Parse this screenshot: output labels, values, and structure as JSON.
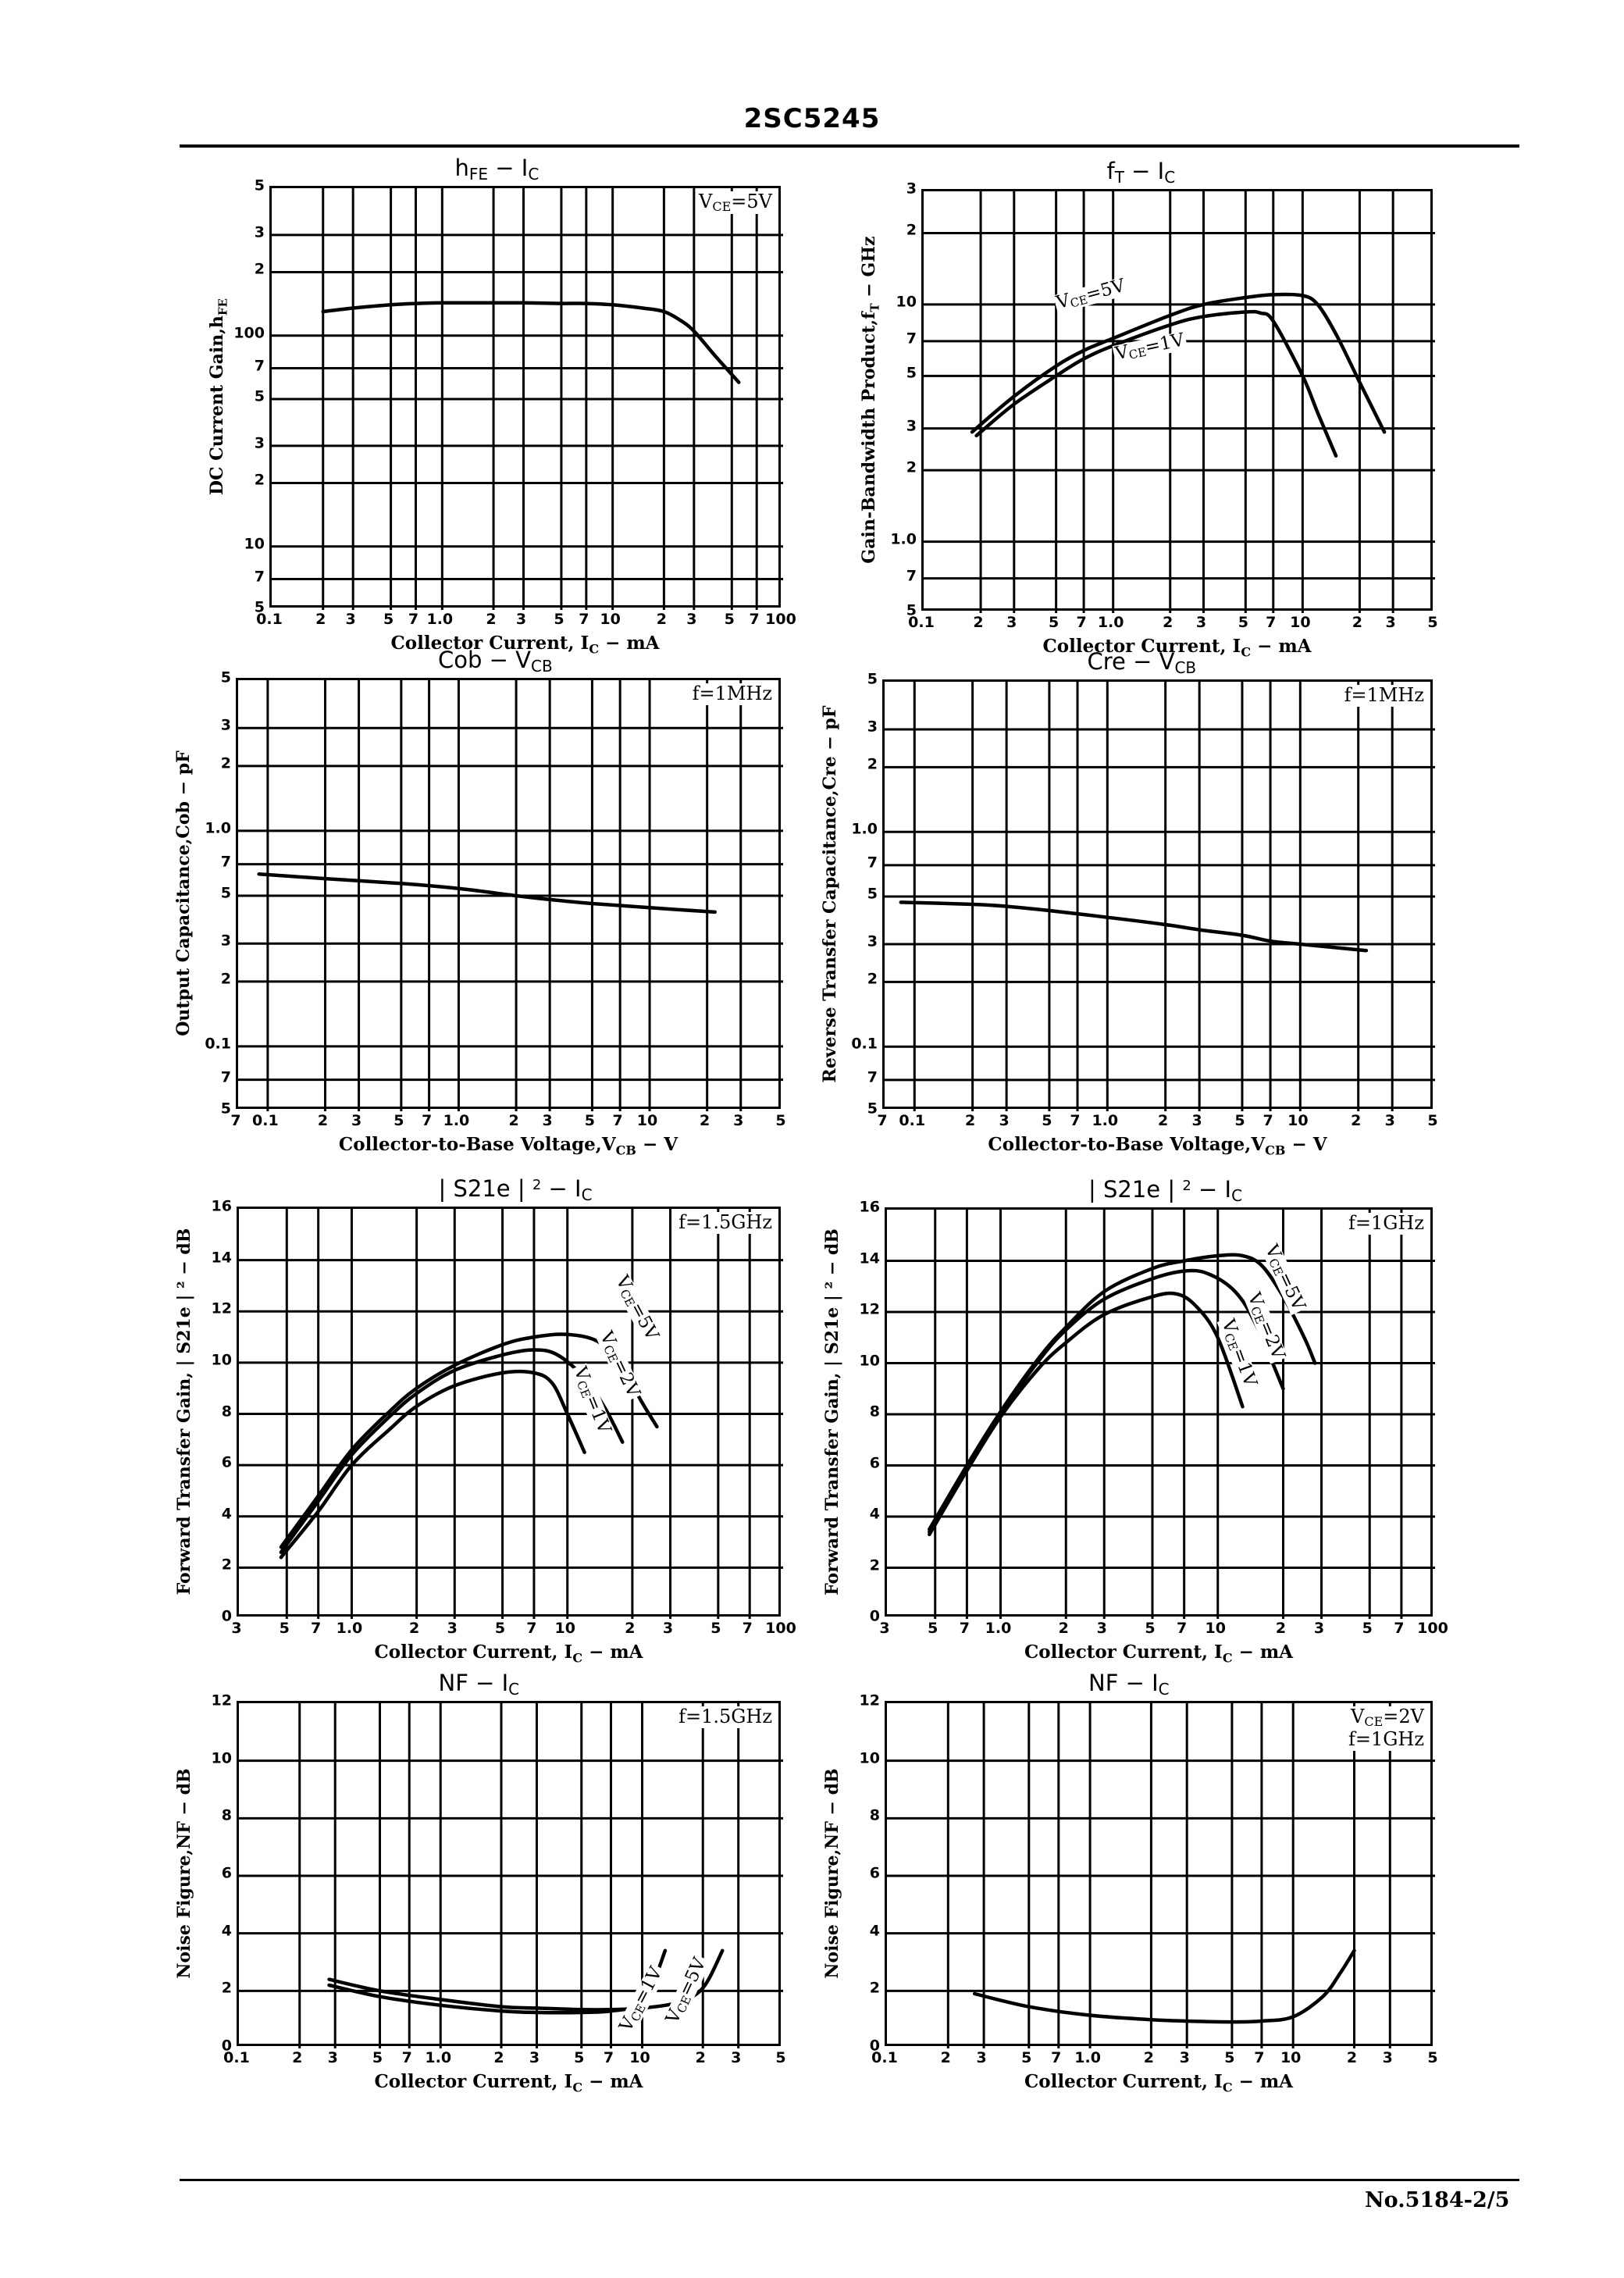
{
  "header": {
    "part_number": "2SC5245"
  },
  "footer": {
    "page_ref": "No.5184-2/5"
  },
  "charts": [
    {
      "id": "hfe-ic",
      "title_main": "h",
      "title_sub": "FE",
      "title_rest": "  −  I",
      "title_rest_sub": "C",
      "condition_lines": [
        "V|CE|=5V"
      ],
      "ylabel": "DC Current Gain,h",
      "ylabel_sub": "FE",
      "xlabel": "Collector Current, I",
      "xlabel_sub": "C",
      "xlabel_tail": " − mA",
      "x_ticks": [
        "0.1",
        "2",
        "3",
        "5",
        "7",
        "1.0",
        "2",
        "3",
        "5",
        "7",
        "10",
        "2",
        "3",
        "5",
        "7",
        "100"
      ],
      "y_ticks": [
        "5",
        "3",
        "2",
        "100",
        "7",
        "5",
        "3",
        "2",
        "10",
        "7",
        "5"
      ]
    },
    {
      "id": "ft-ic",
      "title_main": "f",
      "title_sub": "T",
      "title_rest": "  −  I",
      "title_rest_sub": "C",
      "condition_lines": [],
      "ylabel": "Gain-Bandwidth Product,f",
      "ylabel_sub": "T",
      "ylabel_tail": " − GHz",
      "xlabel": "Collector Current, I",
      "xlabel_sub": "C",
      "xlabel_tail": " − mA",
      "x_ticks": [
        "0.1",
        "2",
        "3",
        "5",
        "7",
        "1.0",
        "2",
        "3",
        "5",
        "7",
        "10",
        "2",
        "3",
        "5"
      ],
      "y_ticks": [
        "3",
        "2",
        "10",
        "7",
        "5",
        "3",
        "2",
        "1.0",
        "7",
        "5"
      ]
    },
    {
      "id": "cob-vcb",
      "title_main": "Cob",
      "title_sub": "",
      "title_rest": "  −  V",
      "title_rest_sub": "CB",
      "condition_lines": [
        "f=1MHz"
      ],
      "ylabel": "Output Capacitance,Cob − pF",
      "ylabel_sub": "",
      "xlabel": "Collector-to-Base Voltage,V",
      "xlabel_sub": "CB",
      "xlabel_tail": " − V",
      "x_ticks": [
        "7",
        "0.1",
        "2",
        "3",
        "5",
        "7",
        "1.0",
        "2",
        "3",
        "5",
        "7",
        "10",
        "2",
        "3",
        "5"
      ],
      "y_ticks": [
        "5",
        "3",
        "2",
        "1.0",
        "7",
        "5",
        "3",
        "2",
        "0.1",
        "7",
        "5"
      ]
    },
    {
      "id": "cre-vcb",
      "title_main": "Cre",
      "title_sub": "",
      "title_rest": "  −  V",
      "title_rest_sub": "CB",
      "condition_lines": [
        "f=1MHz"
      ],
      "ylabel": "Reverse Transfer Capacitance,Cre − pF",
      "ylabel_sub": "",
      "xlabel": "Collector-to-Base Voltage,V",
      "xlabel_sub": "CB",
      "xlabel_tail": " − V",
      "x_ticks": [
        "7",
        "0.1",
        "2",
        "3",
        "5",
        "7",
        "1.0",
        "2",
        "3",
        "5",
        "7",
        "10",
        "2",
        "3",
        "5"
      ],
      "y_ticks": [
        "5",
        "3",
        "2",
        "1.0",
        "7",
        "5",
        "3",
        "2",
        "0.1",
        "7",
        "5"
      ]
    },
    {
      "id": "s21e-ic-1p5ghz",
      "title_main": "| S21e | ",
      "title_sup": "2",
      "title_rest": "  −  I",
      "title_rest_sub": "C",
      "condition_lines": [
        "f=1.5GHz"
      ],
      "ylabel": "Forward Transfer Gain, | S21e | ² − dB",
      "ylabel_sub": "",
      "xlabel": "Collector Current, I",
      "xlabel_sub": "C",
      "xlabel_tail": " − mA",
      "x_ticks": [
        "3",
        "5",
        "7",
        "1.0",
        "2",
        "3",
        "5",
        "7",
        "10",
        "2",
        "3",
        "5",
        "7",
        "100"
      ],
      "y_ticks": [
        "16",
        "14",
        "12",
        "10",
        "8",
        "6",
        "4",
        "2",
        "0"
      ]
    },
    {
      "id": "s21e-ic-1ghz",
      "title_main": "| S21e | ",
      "title_sup": "2",
      "title_rest": "  −  I",
      "title_rest_sub": "C",
      "condition_lines": [
        "f=1GHz"
      ],
      "ylabel": "Forward Transfer Gain, | S21e | ² − dB",
      "ylabel_sub": "",
      "xlabel": "Collector Current, I",
      "xlabel_sub": "C",
      "xlabel_tail": " − mA",
      "x_ticks": [
        "3",
        "5",
        "7",
        "1.0",
        "2",
        "3",
        "5",
        "7",
        "10",
        "2",
        "3",
        "5",
        "7",
        "100"
      ],
      "y_ticks": [
        "16",
        "14",
        "12",
        "10",
        "8",
        "6",
        "4",
        "2",
        "0"
      ]
    },
    {
      "id": "nf-ic-1p5ghz",
      "title_main": "NF",
      "title_sub": "",
      "title_rest": "  −  I",
      "title_rest_sub": "C",
      "condition_lines": [
        "f=1.5GHz"
      ],
      "ylabel": "Noise Figure,NF − dB",
      "ylabel_sub": "",
      "xlabel": "Collector Current, I",
      "xlabel_sub": "C",
      "xlabel_tail": " − mA",
      "x_ticks": [
        "0.1",
        "2",
        "3",
        "5",
        "7",
        "1.0",
        "2",
        "3",
        "5",
        "7",
        "10",
        "2",
        "3",
        "5"
      ],
      "y_ticks": [
        "12",
        "10",
        "8",
        "6",
        "4",
        "2",
        "0"
      ]
    },
    {
      "id": "nf-ic-1ghz",
      "title_main": "NF",
      "title_sub": "",
      "title_rest": "  −  I",
      "title_rest_sub": "C",
      "condition_lines": [
        "V|CE|=2V",
        "f=1GHz"
      ],
      "ylabel": "Noise Figure,NF − dB",
      "ylabel_sub": "",
      "xlabel": "Collector Current, I",
      "xlabel_sub": "C",
      "xlabel_tail": " − mA",
      "x_ticks": [
        "0.1",
        "2",
        "3",
        "5",
        "7",
        "1.0",
        "2",
        "3",
        "5",
        "7",
        "10",
        "2",
        "3",
        "5"
      ],
      "y_ticks": [
        "12",
        "10",
        "8",
        "6",
        "4",
        "2",
        "0"
      ]
    }
  ],
  "chart_data": [
    {
      "type": "line",
      "title": "hFE – IC",
      "xlabel": "Collector Current, IC – mA",
      "ylabel": "DC Current Gain, hFE",
      "xscale": "log",
      "yscale": "log",
      "xlim": [
        0.1,
        100
      ],
      "ylim": [
        5,
        500
      ],
      "grid": true,
      "annotation": "VCE=5V",
      "series": [
        {
          "name": "VCE=5V",
          "x": [
            0.2,
            0.3,
            0.5,
            0.7,
            1.0,
            2.0,
            3.0,
            5.0,
            7.0,
            10,
            15,
            20,
            25,
            30,
            40,
            55
          ],
          "y": [
            130,
            135,
            140,
            142,
            143,
            143,
            143,
            142,
            142,
            140,
            135,
            130,
            118,
            105,
            80,
            60
          ]
        }
      ]
    },
    {
      "type": "line",
      "title": "fT – IC",
      "xlabel": "Collector Current, IC – mA",
      "ylabel": "Gain-Bandwidth Product, fT – GHz",
      "xscale": "log",
      "yscale": "log",
      "xlim": [
        0.1,
        50
      ],
      "ylim": [
        0.5,
        30
      ],
      "grid": true,
      "series": [
        {
          "name": "VCE=5V",
          "x": [
            0.18,
            0.3,
            0.5,
            0.7,
            1.0,
            2.0,
            3.0,
            5.0,
            7.0,
            10,
            12,
            15,
            20,
            27
          ],
          "y": [
            2.9,
            4.1,
            5.5,
            6.4,
            7.2,
            9.0,
            10.0,
            10.7,
            11.0,
            10.9,
            10.0,
            7.5,
            4.7,
            2.9
          ]
        },
        {
          "name": "VCE=1V",
          "x": [
            0.19,
            0.3,
            0.5,
            0.7,
            1.0,
            2.0,
            3.0,
            5.0,
            6.0,
            7.0,
            10,
            12,
            15
          ],
          "y": [
            2.8,
            3.8,
            5.0,
            5.9,
            6.7,
            8.2,
            8.9,
            9.3,
            9.2,
            8.5,
            5.0,
            3.5,
            2.3
          ]
        }
      ]
    },
    {
      "type": "line",
      "title": "Cob – VCB",
      "xlabel": "Collector-to-Base Voltage, VCB – V",
      "ylabel": "Output Capacitance, Cob – pF",
      "xscale": "log",
      "yscale": "log",
      "xlim": [
        0.07,
        50
      ],
      "ylim": [
        0.05,
        5
      ],
      "grid": true,
      "annotation": "f=1MHz",
      "series": [
        {
          "name": "f=1MHz",
          "x": [
            0.09,
            0.2,
            0.5,
            1.0,
            2.0,
            3.0,
            5.0,
            10,
            22
          ],
          "y": [
            0.63,
            0.6,
            0.57,
            0.54,
            0.5,
            0.48,
            0.46,
            0.44,
            0.42
          ]
        }
      ]
    },
    {
      "type": "line",
      "title": "Cre – VCB",
      "xlabel": "Collector-to-Base Voltage, VCB – V",
      "ylabel": "Reverse Transfer Capacitance, Cre – pF",
      "xscale": "log",
      "yscale": "log",
      "xlim": [
        0.07,
        50
      ],
      "ylim": [
        0.05,
        5
      ],
      "grid": true,
      "annotation": "f=1MHz",
      "series": [
        {
          "name": "f=1MHz",
          "x": [
            0.085,
            0.2,
            0.3,
            0.5,
            1.0,
            2.0,
            3.0,
            5.0,
            7.0,
            10,
            22
          ],
          "y": [
            0.47,
            0.46,
            0.45,
            0.43,
            0.4,
            0.37,
            0.35,
            0.33,
            0.31,
            0.3,
            0.28
          ]
        }
      ]
    },
    {
      "type": "line",
      "title": "|S21e|² – IC",
      "xlabel": "Collector Current, IC – mA",
      "ylabel": "Forward Transfer Gain, |S21e|² – dB",
      "xscale": "log",
      "yscale": "linear",
      "xlim": [
        0.3,
        100
      ],
      "ylim": [
        0,
        16
      ],
      "grid": true,
      "annotation": "f=1.5GHz",
      "series": [
        {
          "name": "VCE=5V",
          "x": [
            0.47,
            0.7,
            1.0,
            1.5,
            2.0,
            3.0,
            5.0,
            7.0,
            10,
            14,
            18,
            22,
            26
          ],
          "y": [
            2.8,
            4.8,
            6.6,
            8.1,
            9.0,
            9.9,
            10.7,
            11.0,
            11.1,
            10.8,
            9.8,
            8.5,
            7.5
          ]
        },
        {
          "name": "VCE=2V",
          "x": [
            0.47,
            0.7,
            1.0,
            1.5,
            2.0,
            3.0,
            5.0,
            7.0,
            9.0,
            12,
            15,
            18
          ],
          "y": [
            2.6,
            4.6,
            6.4,
            7.9,
            8.8,
            9.7,
            10.3,
            10.5,
            10.3,
            9.4,
            8.2,
            6.9
          ]
        },
        {
          "name": "VCE=1V",
          "x": [
            0.47,
            0.7,
            1.0,
            1.5,
            2.0,
            3.0,
            5.0,
            7.0,
            8.5,
            10,
            12
          ],
          "y": [
            2.4,
            4.2,
            6.0,
            7.4,
            8.3,
            9.1,
            9.6,
            9.6,
            9.2,
            8.0,
            6.5
          ]
        }
      ]
    },
    {
      "type": "line",
      "title": "|S21e|² – IC",
      "xlabel": "Collector Current, IC – mA",
      "ylabel": "Forward Transfer Gain, |S21e|² – dB",
      "xscale": "log",
      "yscale": "linear",
      "xlim": [
        0.3,
        100
      ],
      "ylim": [
        0,
        16
      ],
      "grid": true,
      "annotation": "f=1GHz",
      "series": [
        {
          "name": "VCE=5V",
          "x": [
            0.47,
            0.7,
            1.0,
            1.5,
            2.0,
            3.0,
            5.0,
            7.0,
            10,
            13,
            16,
            20,
            25,
            28
          ],
          "y": [
            3.5,
            6.0,
            8.1,
            10.2,
            11.4,
            12.8,
            13.7,
            14.0,
            14.2,
            14.2,
            13.8,
            12.6,
            11.0,
            10.0
          ]
        },
        {
          "name": "VCE=2V",
          "x": [
            0.47,
            0.7,
            1.0,
            1.5,
            2.0,
            3.0,
            5.0,
            7.0,
            9.0,
            12,
            15,
            20
          ],
          "y": [
            3.4,
            5.9,
            8.0,
            10.1,
            11.3,
            12.5,
            13.3,
            13.6,
            13.5,
            12.8,
            11.5,
            9.0
          ]
        },
        {
          "name": "VCE=1V",
          "x": [
            0.47,
            0.7,
            1.0,
            1.5,
            2.0,
            3.0,
            5.0,
            6.5,
            8.0,
            10,
            13
          ],
          "y": [
            3.3,
            5.8,
            7.9,
            9.8,
            10.8,
            11.9,
            12.6,
            12.7,
            12.2,
            11.0,
            8.3
          ]
        }
      ]
    },
    {
      "type": "line",
      "title": "NF – IC",
      "xlabel": "Collector Current, IC – mA",
      "ylabel": "Noise Figure, NF – dB",
      "xscale": "log",
      "yscale": "linear",
      "xlim": [
        0.1,
        50
      ],
      "ylim": [
        0,
        12
      ],
      "grid": true,
      "annotation": "f=1.5GHz",
      "series": [
        {
          "name": "VCE=5V",
          "x": [
            0.28,
            0.5,
            1.0,
            2.0,
            3.0,
            5.0,
            7.0,
            10,
            15,
            20,
            25
          ],
          "y": [
            2.4,
            2.0,
            1.7,
            1.45,
            1.4,
            1.35,
            1.35,
            1.4,
            1.6,
            2.1,
            3.4
          ]
        },
        {
          "name": "VCE=1V",
          "x": [
            0.28,
            0.5,
            1.0,
            2.0,
            3.0,
            5.0,
            7.0,
            10,
            11,
            13
          ],
          "y": [
            2.2,
            1.8,
            1.5,
            1.3,
            1.25,
            1.25,
            1.3,
            1.5,
            2.0,
            3.4
          ]
        }
      ]
    },
    {
      "type": "line",
      "title": "NF – IC",
      "xlabel": "Collector Current, IC – mA",
      "ylabel": "Noise Figure, NF – dB",
      "xscale": "log",
      "yscale": "linear",
      "xlim": [
        0.1,
        50
      ],
      "ylim": [
        0,
        12
      ],
      "grid": true,
      "annotation": "VCE=2V, f=1GHz",
      "series": [
        {
          "name": "VCE=2V",
          "x": [
            0.27,
            0.5,
            1.0,
            2.0,
            3.0,
            5.0,
            7.0,
            10,
            14,
            17,
            20
          ],
          "y": [
            1.9,
            1.45,
            1.15,
            1.0,
            0.95,
            0.92,
            0.95,
            1.1,
            1.8,
            2.6,
            3.4
          ]
        }
      ]
    }
  ],
  "series_labels": [
    {
      "chart": 1,
      "text": "V|CE|=5V",
      "x": 1352,
      "y": 378,
      "rot": -15
    },
    {
      "chart": 1,
      "text": "V|CE|=1V",
      "x": 1427,
      "y": 443,
      "rot": -12
    },
    {
      "chart": 4,
      "text": "V|CE|=5V",
      "x": 793,
      "y": 1622,
      "rot": 62
    },
    {
      "chart": 4,
      "text": "V|CE|=2V",
      "x": 773,
      "y": 1693,
      "rot": 65
    },
    {
      "chart": 4,
      "text": "V|CE|=1V",
      "x": 740,
      "y": 1738,
      "rot": 68
    },
    {
      "chart": 5,
      "text": "V|CE|=5V",
      "x": 1625,
      "y": 1582,
      "rot": 65
    },
    {
      "chart": 5,
      "text": "V|CE|=2V",
      "x": 1603,
      "y": 1643,
      "rot": 68
    },
    {
      "chart": 5,
      "text": "V|CE|=1V",
      "x": 1570,
      "y": 1677,
      "rot": 70
    },
    {
      "chart": 6,
      "text": "V|CE|=1V",
      "x": 800,
      "y": 2590,
      "rot": -62
    },
    {
      "chart": 6,
      "text": "V|CE|=5V",
      "x": 860,
      "y": 2580,
      "rot": -65
    }
  ]
}
